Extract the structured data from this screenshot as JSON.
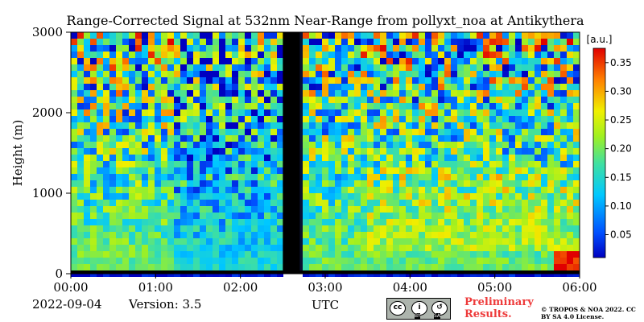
{
  "chart_data": {
    "type": "heatmap",
    "title": "Range-Corrected Signal at 532nm Near-Range from pollyxt_noa at Antikythera",
    "xlabel": "UTC",
    "ylabel": "Height (m)",
    "x_range": [
      0,
      6
    ],
    "ylim": [
      0,
      3000
    ],
    "x_ticks": [
      "00:00",
      "01:00",
      "02:00",
      "03:00",
      "04:00",
      "05:00",
      "06:00"
    ],
    "y_ticks": [
      0,
      1000,
      2000,
      3000
    ],
    "colorbar": {
      "label": "[a.u.]",
      "ticks": [
        "0.05",
        "0.10",
        "0.15",
        "0.20",
        "0.25",
        "0.30",
        "0.35"
      ],
      "tick_values": [
        0.05,
        0.1,
        0.15,
        0.2,
        0.25,
        0.3,
        0.35
      ],
      "range": [
        0.01,
        0.375
      ],
      "colormap": "jet"
    },
    "no_data_interval_utc": [
      "02:30",
      "02:42"
    ]
  },
  "footer": {
    "date": "2022-09-04",
    "version": "Version: 3.5",
    "preliminary": "Preliminary Results.",
    "copyright": "© TROPOS & NOA 2022. CC BY SA 4.0 License.",
    "cc_badge_by": "BY",
    "cc_badge_sa": "SA"
  },
  "colors": {
    "no_data": "#000000",
    "preliminary_text": "#ee3b3b"
  }
}
